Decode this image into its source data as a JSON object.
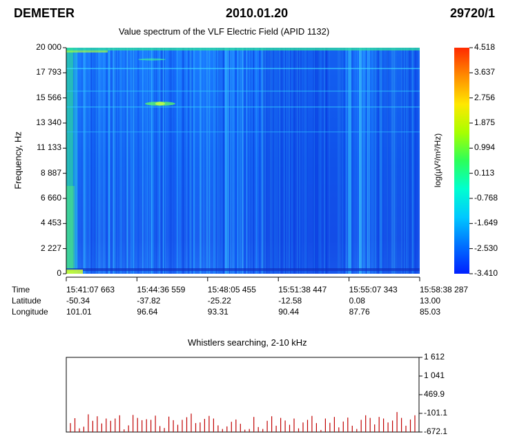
{
  "header": {
    "mission": "DEMETER",
    "date": "2010.01.20",
    "orbit": "29720/1"
  },
  "chart_data": [
    {
      "type": "heatmap",
      "title": "Value spectrum of the VLF Electric Field (APID 1132)",
      "ylabel": "Frequency, Hz",
      "yticks": [
        "0",
        "2 227",
        "4 453",
        "6 660",
        "8 887",
        "11 133",
        "13 340",
        "15 566",
        "17 793",
        "20 000"
      ],
      "ylim": [
        0,
        20000
      ],
      "colorbar": {
        "label": "log(µV²/m²/Hz)",
        "ticks": [
          "4.518",
          "3.637",
          "2.756",
          "1.875",
          "0.994",
          "0.113",
          "-0.768",
          "-1.649",
          "-2.530",
          "-3.410"
        ],
        "range": [
          -3.41,
          4.518
        ],
        "colors": [
          "#ff2a00",
          "#ff8c00",
          "#ffe800",
          "#a8ff00",
          "#2cff5a",
          "#00ffd0",
          "#00c8ff",
          "#0070ff",
          "#0020ff"
        ]
      },
      "x_axis": {
        "row_labels": [
          "Time",
          "Latitude",
          "Longitude"
        ],
        "columns": [
          {
            "time": "15:41:07 663",
            "latitude": "-50.34",
            "longitude": "101.01"
          },
          {
            "time": "15:44:36 559",
            "latitude": "-37.82",
            "longitude": "96.64"
          },
          {
            "time": "15:48:05 455",
            "latitude": "-25.22",
            "longitude": "93.31"
          },
          {
            "time": "15:51:38 447",
            "latitude": "-12.58",
            "longitude": "90.44"
          },
          {
            "time": "15:55:07 343",
            "latitude": "0.08",
            "longitude": "87.76"
          },
          {
            "time": "15:58:38 287",
            "latitude": "13.00",
            "longitude": "85.03"
          }
        ]
      }
    },
    {
      "type": "bar",
      "title": "Whistlers searching, 2-10 kHz",
      "ylim": [
        -672.1,
        1612
      ],
      "yticks": [
        "1 612",
        "1 041",
        "469.9",
        "-101.1",
        "-672.1"
      ],
      "bar_color": "#c00000",
      "values": [
        -400,
        -250,
        -560,
        -510,
        -130,
        -330,
        -190,
        -410,
        -260,
        -330,
        -260,
        -160,
        -590,
        -470,
        -150,
        -240,
        -310,
        -280,
        -300,
        -170,
        -490,
        -550,
        -200,
        -310,
        -450,
        -300,
        -220,
        -110,
        -400,
        -380,
        -270,
        -180,
        -260,
        -470,
        -580,
        -500,
        -360,
        -290,
        -420,
        -600,
        -580,
        -210,
        -520,
        -580,
        -330,
        -190,
        -480,
        -240,
        -320,
        -450,
        -260,
        -560,
        -380,
        -300,
        -180,
        -400,
        -610,
        -260,
        -390,
        -210,
        -530,
        -350,
        -230,
        -480,
        -580,
        -300,
        -160,
        -240,
        -440,
        -210,
        -260,
        -380,
        -320,
        -60,
        -240,
        -480,
        -290,
        -160
      ]
    }
  ]
}
